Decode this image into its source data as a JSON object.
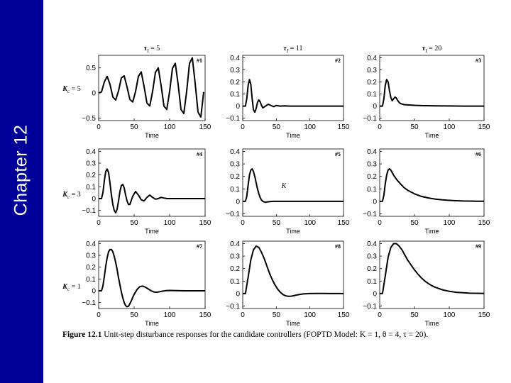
{
  "slide": {
    "chapter_label": "Chapter 12",
    "caption_label": "Figure 12.1",
    "caption_text": "Unit-step disturbance responses for the candidate controllers (FOPTD Model: K = 1, θ = 4, τ = 20).",
    "accent_color": "#000099"
  },
  "chart_data": [
    {
      "id": "#1",
      "type": "line",
      "col_title": "τI = 5",
      "row_label": "Kc = 5",
      "xlabel": "Time",
      "xlim": [
        0,
        150
      ],
      "ylim": [
        -0.55,
        0.75
      ],
      "xticks": [
        0,
        50,
        100,
        150
      ],
      "yticks": [
        -0.5,
        0,
        0.5
      ],
      "ytick_labels": [
        "−0.5",
        "0",
        "0.5"
      ],
      "x": [
        0,
        4,
        8,
        12,
        16,
        20,
        24,
        28,
        32,
        36,
        40,
        44,
        48,
        52,
        56,
        60,
        64,
        68,
        72,
        76,
        80,
        84,
        88,
        92,
        96,
        100,
        104,
        108,
        112,
        116,
        120,
        124,
        128,
        132,
        136,
        140,
        144,
        148
      ],
      "y": [
        0,
        0.02,
        0.22,
        0.33,
        0.17,
        -0.08,
        -0.14,
        0.04,
        0.3,
        0.34,
        0.12,
        -0.13,
        -0.18,
        0.03,
        0.33,
        0.42,
        0.13,
        -0.2,
        -0.26,
        0.03,
        0.41,
        0.5,
        0.15,
        -0.26,
        -0.33,
        0.03,
        0.49,
        0.59,
        0.17,
        -0.33,
        -0.41,
        0.03,
        0.59,
        0.7,
        0.19,
        -0.38,
        -0.48,
        0.02
      ]
    },
    {
      "id": "#2",
      "type": "line",
      "col_title": "τI = 11",
      "xlabel": "Time",
      "xlim": [
        0,
        150
      ],
      "ylim": [
        -0.12,
        0.42
      ],
      "xticks": [
        0,
        50,
        100,
        150
      ],
      "yticks": [
        -0.1,
        0,
        0.1,
        0.2,
        0.3,
        0.4
      ],
      "ytick_labels": [
        "−0.1",
        "0",
        "0.1",
        "0.2",
        "0.3",
        "0.4"
      ],
      "x": [
        0,
        4,
        6,
        8,
        10,
        12,
        14,
        16,
        18,
        20,
        22,
        24,
        26,
        28,
        30,
        34,
        38,
        42,
        46,
        50,
        56,
        62,
        70,
        80,
        90,
        100,
        120,
        150
      ],
      "y": [
        0,
        0,
        0.06,
        0.17,
        0.22,
        0.18,
        0.06,
        -0.03,
        -0.05,
        -0.02,
        0.03,
        0.05,
        0.035,
        0.005,
        -0.015,
        0,
        0.015,
        0.005,
        -0.005,
        0.005,
        0,
        0.002,
        0,
        0,
        0,
        0,
        0,
        0
      ]
    },
    {
      "id": "#3",
      "type": "line",
      "col_title": "τI = 20",
      "xlabel": "Time",
      "xlim": [
        0,
        150
      ],
      "ylim": [
        -0.12,
        0.42
      ],
      "xticks": [
        0,
        50,
        100,
        150
      ],
      "yticks": [
        -0.1,
        0,
        0.1,
        0.2,
        0.3,
        0.4
      ],
      "ytick_labels": [
        "−0.1",
        "0",
        "0.1",
        "0.2",
        "0.3",
        "0.4"
      ],
      "x": [
        0,
        4,
        6,
        8,
        10,
        12,
        14,
        16,
        18,
        20,
        22,
        24,
        26,
        28,
        30,
        35,
        40,
        50,
        60,
        80,
        100,
        120,
        150
      ],
      "y": [
        0,
        0,
        0.06,
        0.17,
        0.22,
        0.2,
        0.13,
        0.07,
        0.045,
        0.06,
        0.075,
        0.065,
        0.045,
        0.03,
        0.02,
        0.012,
        0.01,
        0.006,
        0.004,
        0.002,
        0.001,
        0,
        0
      ]
    },
    {
      "id": "#4",
      "type": "line",
      "row_label": "Kc = 3",
      "xlabel": "Time",
      "xlim": [
        0,
        150
      ],
      "ylim": [
        -0.15,
        0.42
      ],
      "xticks": [
        0,
        50,
        100,
        150
      ],
      "yticks": [
        -0.1,
        0,
        0.1,
        0.2,
        0.3,
        0.4
      ],
      "ytick_labels": [
        "−0.1",
        "0",
        "0.1",
        "0.2",
        "0.3",
        "0.4"
      ],
      "x": [
        0,
        4,
        6,
        8,
        10,
        12,
        14,
        16,
        18,
        20,
        22,
        24,
        26,
        28,
        30,
        32,
        34,
        36,
        38,
        40,
        42,
        44,
        48,
        52,
        56,
        60,
        64,
        68,
        72,
        76,
        80,
        84,
        88,
        92,
        96,
        100,
        110,
        120,
        130,
        140,
        150
      ],
      "y": [
        0,
        0,
        0.05,
        0.15,
        0.23,
        0.25,
        0.22,
        0.13,
        0.03,
        -0.05,
        -0.1,
        -0.12,
        -0.09,
        -0.02,
        0.06,
        0.11,
        0.12,
        0.09,
        0.03,
        -0.02,
        -0.05,
        -0.05,
        0.02,
        0.06,
        0.03,
        -0.01,
        -0.02,
        0.01,
        0.03,
        0.01,
        -0.005,
        0,
        0.01,
        0.005,
        0,
        0,
        0,
        0,
        0,
        0,
        0
      ]
    },
    {
      "id": "#5",
      "type": "line",
      "xlabel": "Time",
      "xlim": [
        0,
        150
      ],
      "ylim": [
        -0.12,
        0.42
      ],
      "xticks": [
        0,
        50,
        100,
        150
      ],
      "yticks": [
        -0.1,
        0,
        0.1,
        0.2,
        0.3,
        0.4
      ],
      "ytick_labels": [
        "−0.1",
        "0",
        "0.1",
        "0.2",
        "0.3",
        "0.4"
      ],
      "x": [
        0,
        4,
        6,
        8,
        10,
        12,
        14,
        16,
        18,
        20,
        22,
        24,
        26,
        28,
        30,
        32,
        34,
        36,
        40,
        45,
        50,
        60,
        70,
        80,
        100,
        120,
        150
      ],
      "y": [
        0,
        0,
        0.04,
        0.13,
        0.21,
        0.25,
        0.26,
        0.24,
        0.2,
        0.15,
        0.1,
        0.06,
        0.03,
        0.01,
        0,
        -0.005,
        -0.007,
        -0.005,
        -0.002,
        0,
        0,
        0,
        0,
        0,
        0,
        0,
        0
      ]
    },
    {
      "id": "#6",
      "type": "line",
      "xlabel": "Time",
      "xlim": [
        0,
        150
      ],
      "ylim": [
        -0.12,
        0.42
      ],
      "xticks": [
        0,
        50,
        100,
        150
      ],
      "yticks": [
        -0.1,
        0,
        0.1,
        0.2,
        0.3,
        0.4
      ],
      "ytick_labels": [
        "−0.1",
        "0",
        "0.1",
        "0.2",
        "0.3",
        "0.4"
      ],
      "x": [
        0,
        4,
        6,
        8,
        10,
        12,
        14,
        16,
        18,
        20,
        25,
        30,
        35,
        40,
        45,
        50,
        60,
        70,
        80,
        90,
        100,
        110,
        120,
        130,
        140,
        150
      ],
      "y": [
        0,
        0,
        0.05,
        0.14,
        0.21,
        0.25,
        0.26,
        0.25,
        0.23,
        0.21,
        0.17,
        0.14,
        0.11,
        0.09,
        0.075,
        0.06,
        0.04,
        0.027,
        0.018,
        0.012,
        0.008,
        0.005,
        0.003,
        0.002,
        0.001,
        0.001
      ]
    },
    {
      "id": "#7",
      "type": "line",
      "row_label": "Kc = 1",
      "xlabel": "Time",
      "xlim": [
        0,
        150
      ],
      "ylim": [
        -0.15,
        0.42
      ],
      "xticks": [
        0,
        50,
        100,
        150
      ],
      "yticks": [
        -0.1,
        0,
        0.1,
        0.2,
        0.3,
        0.4
      ],
      "ytick_labels": [
        "−0.1",
        "0",
        "0.1",
        "0.2",
        "0.3",
        "0.4"
      ],
      "x": [
        0,
        4,
        6,
        8,
        10,
        12,
        14,
        16,
        18,
        20,
        22,
        24,
        26,
        28,
        30,
        32,
        34,
        36,
        38,
        40,
        42,
        44,
        46,
        48,
        50,
        54,
        58,
        62,
        66,
        70,
        74,
        78,
        82,
        86,
        90,
        95,
        100,
        110,
        120,
        130,
        140,
        150
      ],
      "y": [
        0,
        0,
        0.04,
        0.12,
        0.21,
        0.28,
        0.33,
        0.35,
        0.35,
        0.33,
        0.29,
        0.24,
        0.18,
        0.11,
        0.05,
        -0.01,
        -0.06,
        -0.1,
        -0.125,
        -0.135,
        -0.13,
        -0.11,
        -0.085,
        -0.055,
        -0.03,
        0.01,
        0.035,
        0.04,
        0.03,
        0.015,
        0,
        -0.01,
        -0.012,
        -0.008,
        -0.003,
        0.002,
        0.003,
        0.001,
        0,
        0,
        0,
        0
      ]
    },
    {
      "id": "#8",
      "type": "line",
      "xlabel": "Time",
      "xlim": [
        0,
        150
      ],
      "ylim": [
        -0.12,
        0.42
      ],
      "xticks": [
        0,
        50,
        100,
        150
      ],
      "yticks": [
        -0.1,
        0,
        0.1,
        0.2,
        0.3,
        0.4
      ],
      "ytick_labels": [
        "−0.1",
        "0",
        "0.1",
        "0.2",
        "0.3",
        "0.4"
      ],
      "x": [
        0,
        4,
        8,
        12,
        16,
        20,
        24,
        28,
        32,
        36,
        40,
        44,
        48,
        52,
        56,
        60,
        64,
        68,
        72,
        76,
        80,
        85,
        90,
        100,
        110,
        120,
        130,
        140,
        150
      ],
      "y": [
        0,
        0,
        0.13,
        0.27,
        0.35,
        0.38,
        0.37,
        0.33,
        0.28,
        0.22,
        0.16,
        0.11,
        0.07,
        0.035,
        0.01,
        -0.008,
        -0.018,
        -0.022,
        -0.021,
        -0.017,
        -0.012,
        -0.007,
        -0.003,
        0,
        0.001,
        0.001,
        0,
        0,
        0
      ]
    },
    {
      "id": "#9",
      "type": "line",
      "xlabel": "Time",
      "xlim": [
        0,
        150
      ],
      "ylim": [
        -0.12,
        0.42
      ],
      "xticks": [
        0,
        50,
        100,
        150
      ],
      "yticks": [
        -0.1,
        0,
        0.1,
        0.2,
        0.3,
        0.4
      ],
      "ytick_labels": [
        "−0.1",
        "0",
        "0.1",
        "0.2",
        "0.3",
        "0.4"
      ],
      "x": [
        0,
        4,
        8,
        12,
        16,
        20,
        24,
        28,
        32,
        36,
        40,
        45,
        50,
        55,
        60,
        65,
        70,
        75,
        80,
        90,
        100,
        110,
        120,
        130,
        140,
        150
      ],
      "y": [
        0,
        0,
        0.14,
        0.29,
        0.37,
        0.4,
        0.4,
        0.38,
        0.35,
        0.31,
        0.27,
        0.23,
        0.19,
        0.155,
        0.125,
        0.1,
        0.08,
        0.063,
        0.05,
        0.03,
        0.018,
        0.01,
        0.006,
        0.003,
        0.002,
        0.001
      ]
    }
  ],
  "annotations": {
    "kc_symbol": "K",
    "tau_symbol": "τ",
    "kc_sub": "c",
    "tau_sub": "I"
  }
}
